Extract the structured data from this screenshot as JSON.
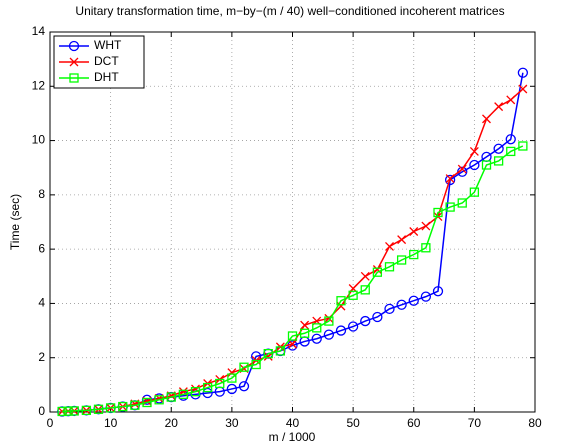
{
  "chart_data": {
    "type": "line",
    "title": "Unitary transformation time, m−by−(m / 40) well−conditioned incoherent matrices",
    "x_label": "m / 1000",
    "y_label": "Time (sec)",
    "x": [
      2,
      3,
      4,
      6,
      8,
      10,
      12,
      14,
      16,
      18,
      20,
      22,
      24,
      26,
      28,
      30,
      32,
      34,
      36,
      38,
      40,
      42,
      44,
      46,
      48,
      50,
      52,
      54,
      56,
      58,
      60,
      62,
      64,
      66,
      68,
      70,
      72,
      74,
      76,
      78
    ],
    "series": [
      {
        "name": "WHT",
        "color": "#0000ff",
        "marker": "circle",
        "values": [
          0.02,
          0.03,
          0.04,
          0.06,
          0.1,
          0.15,
          0.2,
          0.25,
          0.45,
          0.5,
          0.55,
          0.6,
          0.65,
          0.7,
          0.75,
          0.85,
          0.95,
          2.05,
          2.15,
          2.25,
          2.45,
          2.6,
          2.7,
          2.85,
          3.0,
          3.15,
          3.35,
          3.5,
          3.8,
          3.95,
          4.1,
          4.25,
          4.45,
          8.55,
          8.85,
          9.1,
          9.4,
          9.7,
          10.05,
          12.5
        ]
      },
      {
        "name": "DCT",
        "color": "#ff0000",
        "marker": "x",
        "values": [
          0.02,
          0.03,
          0.04,
          0.06,
          0.1,
          0.15,
          0.2,
          0.3,
          0.4,
          0.5,
          0.6,
          0.75,
          0.85,
          1.05,
          1.2,
          1.45,
          1.6,
          1.9,
          2.05,
          2.4,
          2.5,
          3.2,
          3.35,
          3.45,
          3.9,
          4.55,
          5.0,
          5.25,
          6.1,
          6.35,
          6.65,
          6.85,
          7.2,
          8.6,
          8.95,
          9.6,
          10.8,
          11.25,
          11.5,
          11.9
        ]
      },
      {
        "name": "DHT",
        "color": "#00ff00",
        "marker": "square",
        "values": [
          0.02,
          0.03,
          0.04,
          0.06,
          0.1,
          0.15,
          0.2,
          0.25,
          0.35,
          0.45,
          0.55,
          0.65,
          0.75,
          0.9,
          1.05,
          1.25,
          1.65,
          1.75,
          2.15,
          2.25,
          2.8,
          2.9,
          3.1,
          3.35,
          4.1,
          4.3,
          4.5,
          5.15,
          5.35,
          5.6,
          5.8,
          6.05,
          7.35,
          7.55,
          7.7,
          8.1,
          9.1,
          9.25,
          9.6,
          9.8
        ]
      }
    ],
    "xlim": [
      0,
      80
    ],
    "xticks": [
      0,
      10,
      20,
      30,
      40,
      50,
      60,
      70,
      80
    ],
    "ylim": [
      0,
      14
    ],
    "yticks": [
      0,
      2,
      4,
      6,
      8,
      10,
      12,
      14
    ],
    "grid": true,
    "legend": "upper-left"
  }
}
